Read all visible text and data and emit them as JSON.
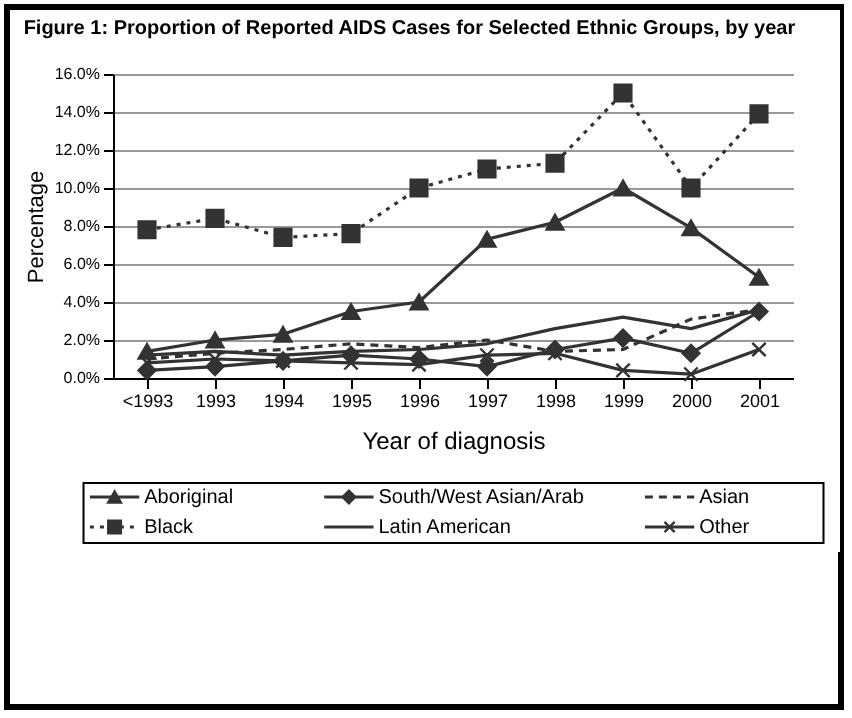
{
  "chart_data": {
    "type": "line",
    "title": "Figure 1: Proportion of Reported AIDS Cases for Selected Ethnic Groups, by year",
    "xlabel": "Year of diagnosis",
    "ylabel": "Percentage",
    "categories": [
      "<1993",
      "1993",
      "1994",
      "1995",
      "1996",
      "1997",
      "1998",
      "1999",
      "2000",
      "2001"
    ],
    "ylim": [
      0,
      16
    ],
    "yticks": [
      {
        "value": 0,
        "label": "0.0%"
      },
      {
        "value": 2,
        "label": "2.0%"
      },
      {
        "value": 4,
        "label": "4.0%"
      },
      {
        "value": 6,
        "label": "6.0%"
      },
      {
        "value": 8,
        "label": "8.0%"
      },
      {
        "value": 10,
        "label": "10.0%"
      },
      {
        "value": 12,
        "label": "12.0%"
      },
      {
        "value": 14,
        "label": "14.0%"
      },
      {
        "value": 16,
        "label": "16.0%"
      }
    ],
    "grid": "y",
    "legend": "bottom",
    "series": [
      {
        "name": "Aboriginal",
        "color": "#333333",
        "marker": "triangle",
        "line_style": "solid",
        "values": [
          1.4,
          2.0,
          2.3,
          3.5,
          4.0,
          7.3,
          8.2,
          10.0,
          7.9,
          5.3
        ]
      },
      {
        "name": "South/West Asian/Arab",
        "color": "#333333",
        "marker": "diamond",
        "line_style": "solid",
        "values": [
          0.4,
          0.6,
          0.9,
          1.2,
          1.0,
          0.6,
          1.5,
          2.1,
          1.3,
          3.5
        ]
      },
      {
        "name": "Asian",
        "color": "#333333",
        "marker": "none",
        "line_style": "dashed",
        "values": [
          1.0,
          1.3,
          1.5,
          1.8,
          1.6,
          2.0,
          1.4,
          1.5,
          3.1,
          3.6
        ]
      },
      {
        "name": "Black",
        "color": "#333333",
        "marker": "square",
        "line_style": "dotted",
        "values": [
          7.8,
          8.4,
          7.4,
          7.6,
          10.0,
          11.0,
          11.3,
          15.0,
          10.0,
          13.9
        ]
      },
      {
        "name": "Latin American",
        "color": "#333333",
        "marker": "none",
        "line_style": "solid",
        "values": [
          1.2,
          1.4,
          1.2,
          1.4,
          1.5,
          1.8,
          2.6,
          3.2,
          2.6,
          3.6
        ]
      },
      {
        "name": "Other",
        "color": "#333333",
        "marker": "cross",
        "line_style": "solid",
        "values": [
          0.8,
          1.0,
          0.9,
          0.8,
          0.7,
          1.2,
          1.3,
          0.4,
          0.2,
          1.5
        ]
      }
    ]
  }
}
